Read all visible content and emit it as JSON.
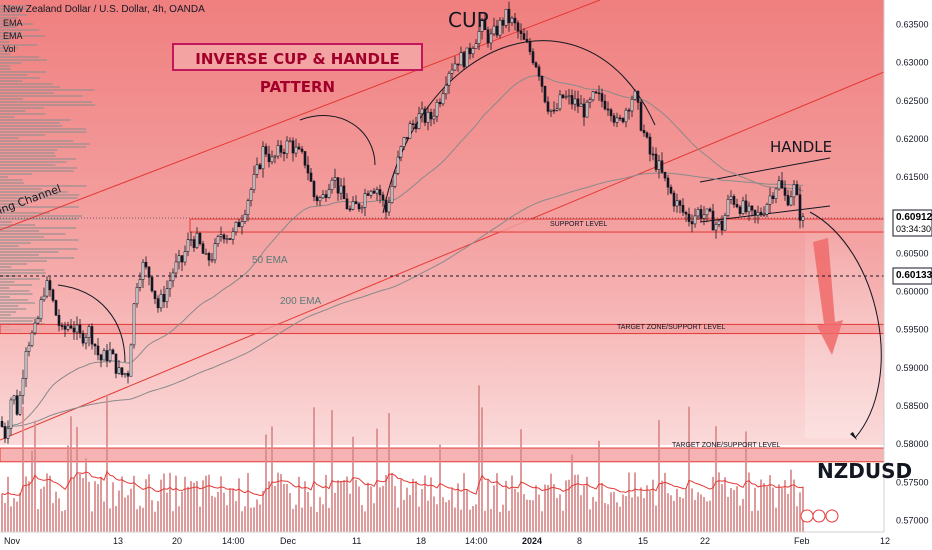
{
  "header": {
    "title": "New Zealand Dollar / U.S. Dollar, 4h, OANDA",
    "indicators": [
      "EMA",
      "EMA",
      "Vol"
    ]
  },
  "annotations": {
    "pattern": "INVERSE CUP & HANDLE PATTERN",
    "cup": "CUP",
    "handle": "HANDLE",
    "symbol": "NZDUSD",
    "support": "SUPPORT LEVEL",
    "target1": "TARGET ZONE/SUPPORT LEVEL",
    "target2": "TARGET ZONE/SUPPORT LEVEL",
    "ema50": "50 EMA",
    "ema200": "200 EMA",
    "channel": "ing Channel"
  },
  "price_tags": {
    "current": "0.60912",
    "countdown": "03:34:30",
    "line": "0.60133"
  },
  "colors": {
    "background_zone": "#f08080",
    "zone_border": "#e53935",
    "candle": "#131722",
    "ema": "#8e8e8e",
    "volume": "#d98a8a"
  },
  "chart_data": {
    "type": "candlestick",
    "x_ticks": [
      "Nov",
      "13",
      "20",
      "14:00",
      "Dec",
      "11",
      "18",
      "14:00",
      "2024",
      "8",
      "15",
      "22",
      "Feb",
      "12"
    ],
    "y_ticks": [
      0.635,
      0.63,
      0.625,
      0.62,
      0.615,
      0.61,
      0.605,
      0.6,
      0.595,
      0.59,
      0.585,
      0.58,
      0.575,
      0.57
    ],
    "ylim": [
      0.5685,
      0.6382
    ],
    "price_close_path": [
      [
        0,
        0.583
      ],
      [
        6,
        0.581
      ],
      [
        12,
        0.587
      ],
      [
        18,
        0.584
      ],
      [
        26,
        0.593
      ],
      [
        36,
        0.595
      ],
      [
        45,
        0.601
      ],
      [
        50,
        0.6
      ],
      [
        56,
        0.597
      ],
      [
        62,
        0.5945
      ],
      [
        70,
        0.596
      ],
      [
        80,
        0.594
      ],
      [
        90,
        0.595
      ],
      [
        100,
        0.591
      ],
      [
        110,
        0.592
      ],
      [
        120,
        0.589
      ],
      [
        128,
        0.5895
      ],
      [
        136,
        0.601
      ],
      [
        142,
        0.6035
      ],
      [
        150,
        0.602
      ],
      [
        158,
        0.598
      ],
      [
        166,
        0.6
      ],
      [
        174,
        0.603
      ],
      [
        182,
        0.604
      ],
      [
        190,
        0.607
      ],
      [
        198,
        0.6065
      ],
      [
        206,
        0.604
      ],
      [
        214,
        0.605
      ],
      [
        222,
        0.608
      ],
      [
        232,
        0.607
      ],
      [
        242,
        0.61
      ],
      [
        250,
        0.613
      ],
      [
        258,
        0.616
      ],
      [
        264,
        0.619
      ],
      [
        272,
        0.617
      ],
      [
        280,
        0.6185
      ],
      [
        290,
        0.6195
      ],
      [
        298,
        0.618
      ],
      [
        306,
        0.617
      ],
      [
        314,
        0.6125
      ],
      [
        322,
        0.612
      ],
      [
        332,
        0.6155
      ],
      [
        340,
        0.613
      ],
      [
        350,
        0.6105
      ],
      [
        360,
        0.6115
      ],
      [
        370,
        0.614
      ],
      [
        378,
        0.6135
      ],
      [
        386,
        0.6105
      ],
      [
        394,
        0.615
      ],
      [
        402,
        0.619
      ],
      [
        410,
        0.6215
      ],
      [
        420,
        0.623
      ],
      [
        430,
        0.6225
      ],
      [
        440,
        0.6255
      ],
      [
        448,
        0.629
      ],
      [
        458,
        0.6305
      ],
      [
        466,
        0.6305
      ],
      [
        474,
        0.633
      ],
      [
        482,
        0.6345
      ],
      [
        490,
        0.633
      ],
      [
        498,
        0.6345
      ],
      [
        506,
        0.636
      ],
      [
        514,
        0.635
      ],
      [
        522,
        0.633
      ],
      [
        530,
        0.6315
      ],
      [
        538,
        0.6295
      ],
      [
        546,
        0.625
      ],
      [
        554,
        0.623
      ],
      [
        562,
        0.6255
      ],
      [
        570,
        0.625
      ],
      [
        578,
        0.6245
      ],
      [
        586,
        0.6235
      ],
      [
        594,
        0.6255
      ],
      [
        602,
        0.625
      ],
      [
        610,
        0.6245
      ],
      [
        618,
        0.6215
      ],
      [
        626,
        0.624
      ],
      [
        634,
        0.626
      ],
      [
        642,
        0.6215
      ],
      [
        650,
        0.618
      ],
      [
        658,
        0.6165
      ],
      [
        666,
        0.614
      ],
      [
        674,
        0.612
      ],
      [
        682,
        0.6105
      ],
      [
        690,
        0.6095
      ],
      [
        698,
        0.6105
      ],
      [
        706,
        0.61
      ],
      [
        714,
        0.609
      ],
      [
        722,
        0.6085
      ],
      [
        730,
        0.6125
      ],
      [
        738,
        0.6115
      ],
      [
        746,
        0.6105
      ],
      [
        754,
        0.6095
      ],
      [
        762,
        0.6105
      ],
      [
        770,
        0.6125
      ],
      [
        778,
        0.6145
      ],
      [
        786,
        0.612
      ],
      [
        794,
        0.6135
      ],
      [
        802,
        0.6091
      ]
    ],
    "zones": [
      {
        "label": "SUPPORT LEVEL",
        "y_top": 0.6095,
        "y_bottom": 0.6078
      },
      {
        "label": "TARGET ZONE/SUPPORT LEVEL",
        "y_top": 0.5957,
        "y_bottom": 0.5945
      },
      {
        "label": "TARGET ZONE/SUPPORT LEVEL",
        "y_top": 0.5795,
        "y_bottom": 0.5777
      }
    ],
    "horizontal_line": 0.60133,
    "current_price": 0.60912
  }
}
